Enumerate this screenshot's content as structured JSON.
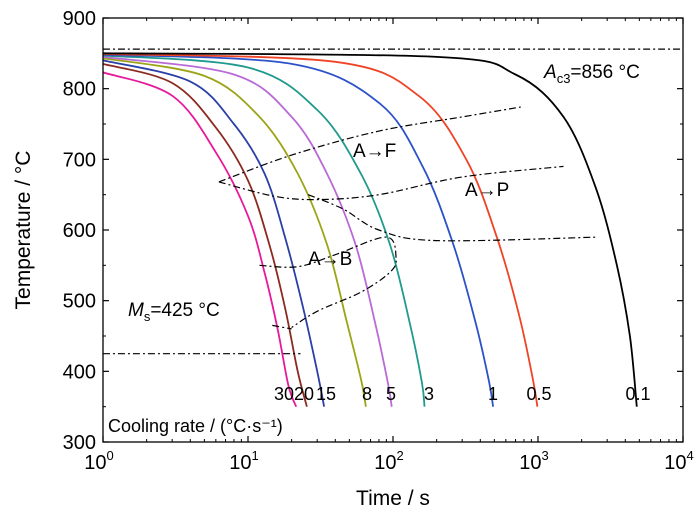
{
  "chart_data": {
    "type": "line",
    "title": "",
    "xlabel": "Time / s",
    "ylabel": "Temperature / °C",
    "xscale": "log",
    "xlim": [
      1,
      10000
    ],
    "ylim": [
      300,
      900
    ],
    "x_ticks": [
      {
        "value": 1,
        "base": "10",
        "exp": "0"
      },
      {
        "value": 10,
        "base": "10",
        "exp": "1"
      },
      {
        "value": 100,
        "base": "10",
        "exp": "2"
      },
      {
        "value": 1000,
        "base": "10",
        "exp": "3"
      },
      {
        "value": 10000,
        "base": "10",
        "exp": "4"
      }
    ],
    "y_ticks": [
      300,
      400,
      500,
      600,
      700,
      800,
      900
    ],
    "grid": false,
    "legend_title": "Cooling rate / (°C·s⁻¹)",
    "series": [
      {
        "name": "30",
        "color": "#e8189a",
        "points": [
          [
            1,
            823
          ],
          [
            3,
            790
          ],
          [
            6,
            710
          ],
          [
            10,
            620
          ],
          [
            13,
            540
          ],
          [
            16,
            460
          ],
          [
            19,
            380
          ],
          [
            21.5,
            350
          ]
        ]
      },
      {
        "name": "20",
        "color": "#8b2a1f",
        "points": [
          [
            1,
            835
          ],
          [
            3,
            808
          ],
          [
            6,
            745
          ],
          [
            10,
            670
          ],
          [
            14,
            580
          ],
          [
            18,
            490
          ],
          [
            22,
            400
          ],
          [
            25.5,
            350
          ]
        ]
      },
      {
        "name": "15",
        "color": "#2a3fa8",
        "points": [
          [
            1,
            840
          ],
          [
            4,
            810
          ],
          [
            8,
            750
          ],
          [
            13,
            680
          ],
          [
            18,
            590
          ],
          [
            24,
            490
          ],
          [
            30,
            400
          ],
          [
            33.5,
            350
          ]
        ]
      },
      {
        "name": "8",
        "color": "#9ca317",
        "points": [
          [
            1,
            843
          ],
          [
            5,
            818
          ],
          [
            12,
            760
          ],
          [
            22,
            680
          ],
          [
            35,
            580
          ],
          [
            48,
            470
          ],
          [
            60,
            390
          ],
          [
            65,
            350
          ]
        ]
      },
      {
        "name": "5",
        "color": "#b96ad6",
        "points": [
          [
            1,
            845
          ],
          [
            8,
            820
          ],
          [
            20,
            760
          ],
          [
            35,
            680
          ],
          [
            55,
            580
          ],
          [
            75,
            470
          ],
          [
            92,
            385
          ],
          [
            98,
            350
          ]
        ]
      },
      {
        "name": "3",
        "color": "#1f9a8c",
        "points": [
          [
            1,
            847
          ],
          [
            10,
            830
          ],
          [
            30,
            770
          ],
          [
            60,
            680
          ],
          [
            95,
            580
          ],
          [
            130,
            470
          ],
          [
            158,
            385
          ],
          [
            165,
            350
          ]
        ]
      },
      {
        "name": "1",
        "color": "#2d52c8",
        "points": [
          [
            1,
            848
          ],
          [
            20,
            835
          ],
          [
            80,
            780
          ],
          [
            160,
            690
          ],
          [
            260,
            580
          ],
          [
            370,
            470
          ],
          [
            460,
            385
          ],
          [
            490,
            350
          ]
        ]
      },
      {
        "name": "0.5",
        "color": "#ef4326",
        "points": [
          [
            1,
            849
          ],
          [
            40,
            838
          ],
          [
            150,
            790
          ],
          [
            320,
            700
          ],
          [
            520,
            590
          ],
          [
            740,
            480
          ],
          [
            920,
            390
          ],
          [
            990,
            350
          ]
        ]
      },
      {
        "name": "0.1",
        "color": "#000000",
        "points": [
          [
            1,
            850
          ],
          [
            200,
            845
          ],
          [
            700,
            820
          ],
          [
            1500,
            760
          ],
          [
            2500,
            660
          ],
          [
            3500,
            550
          ],
          [
            4300,
            450
          ],
          [
            4800,
            350
          ]
        ]
      }
    ],
    "boundaries": [
      {
        "points": [
          [
            1,
            856
          ],
          [
            10000,
            856
          ]
        ]
      },
      {
        "points": [
          [
            6.3,
            668
          ],
          [
            20,
            706
          ],
          [
            80,
            740
          ],
          [
            300,
            760
          ],
          [
            760,
            774
          ]
        ]
      },
      {
        "points": [
          [
            6.3,
            668
          ],
          [
            15,
            648
          ],
          [
            30,
            643
          ],
          [
            80,
            650
          ],
          [
            300,
            675
          ],
          [
            1500,
            690
          ]
        ]
      },
      {
        "points": [
          [
            26,
            650
          ],
          [
            45,
            630
          ],
          [
            80,
            600
          ],
          [
            200,
            585
          ],
          [
            2600,
            590
          ]
        ]
      },
      {
        "points": [
          [
            12,
            550
          ],
          [
            22,
            548
          ],
          [
            40,
            565
          ],
          [
            90,
            590
          ],
          [
            105,
            560
          ],
          [
            95,
            540
          ],
          [
            60,
            512
          ],
          [
            30,
            485
          ],
          [
            20,
            462
          ]
        ]
      },
      {
        "points": [
          [
            14.7,
            465
          ],
          [
            20,
            460
          ]
        ]
      },
      {
        "points": [
          [
            1,
            425
          ],
          [
            23,
            425
          ]
        ]
      }
    ],
    "annotations": {
      "ac3_sym": "A",
      "ac3_sub": "c3",
      "ac3_val": "=856 °C",
      "ms_sym": "M",
      "ms_sub": "s",
      "ms_val": "=425 °C",
      "region_f": "A→F",
      "region_p": "A→P",
      "region_b": "A→B"
    }
  }
}
